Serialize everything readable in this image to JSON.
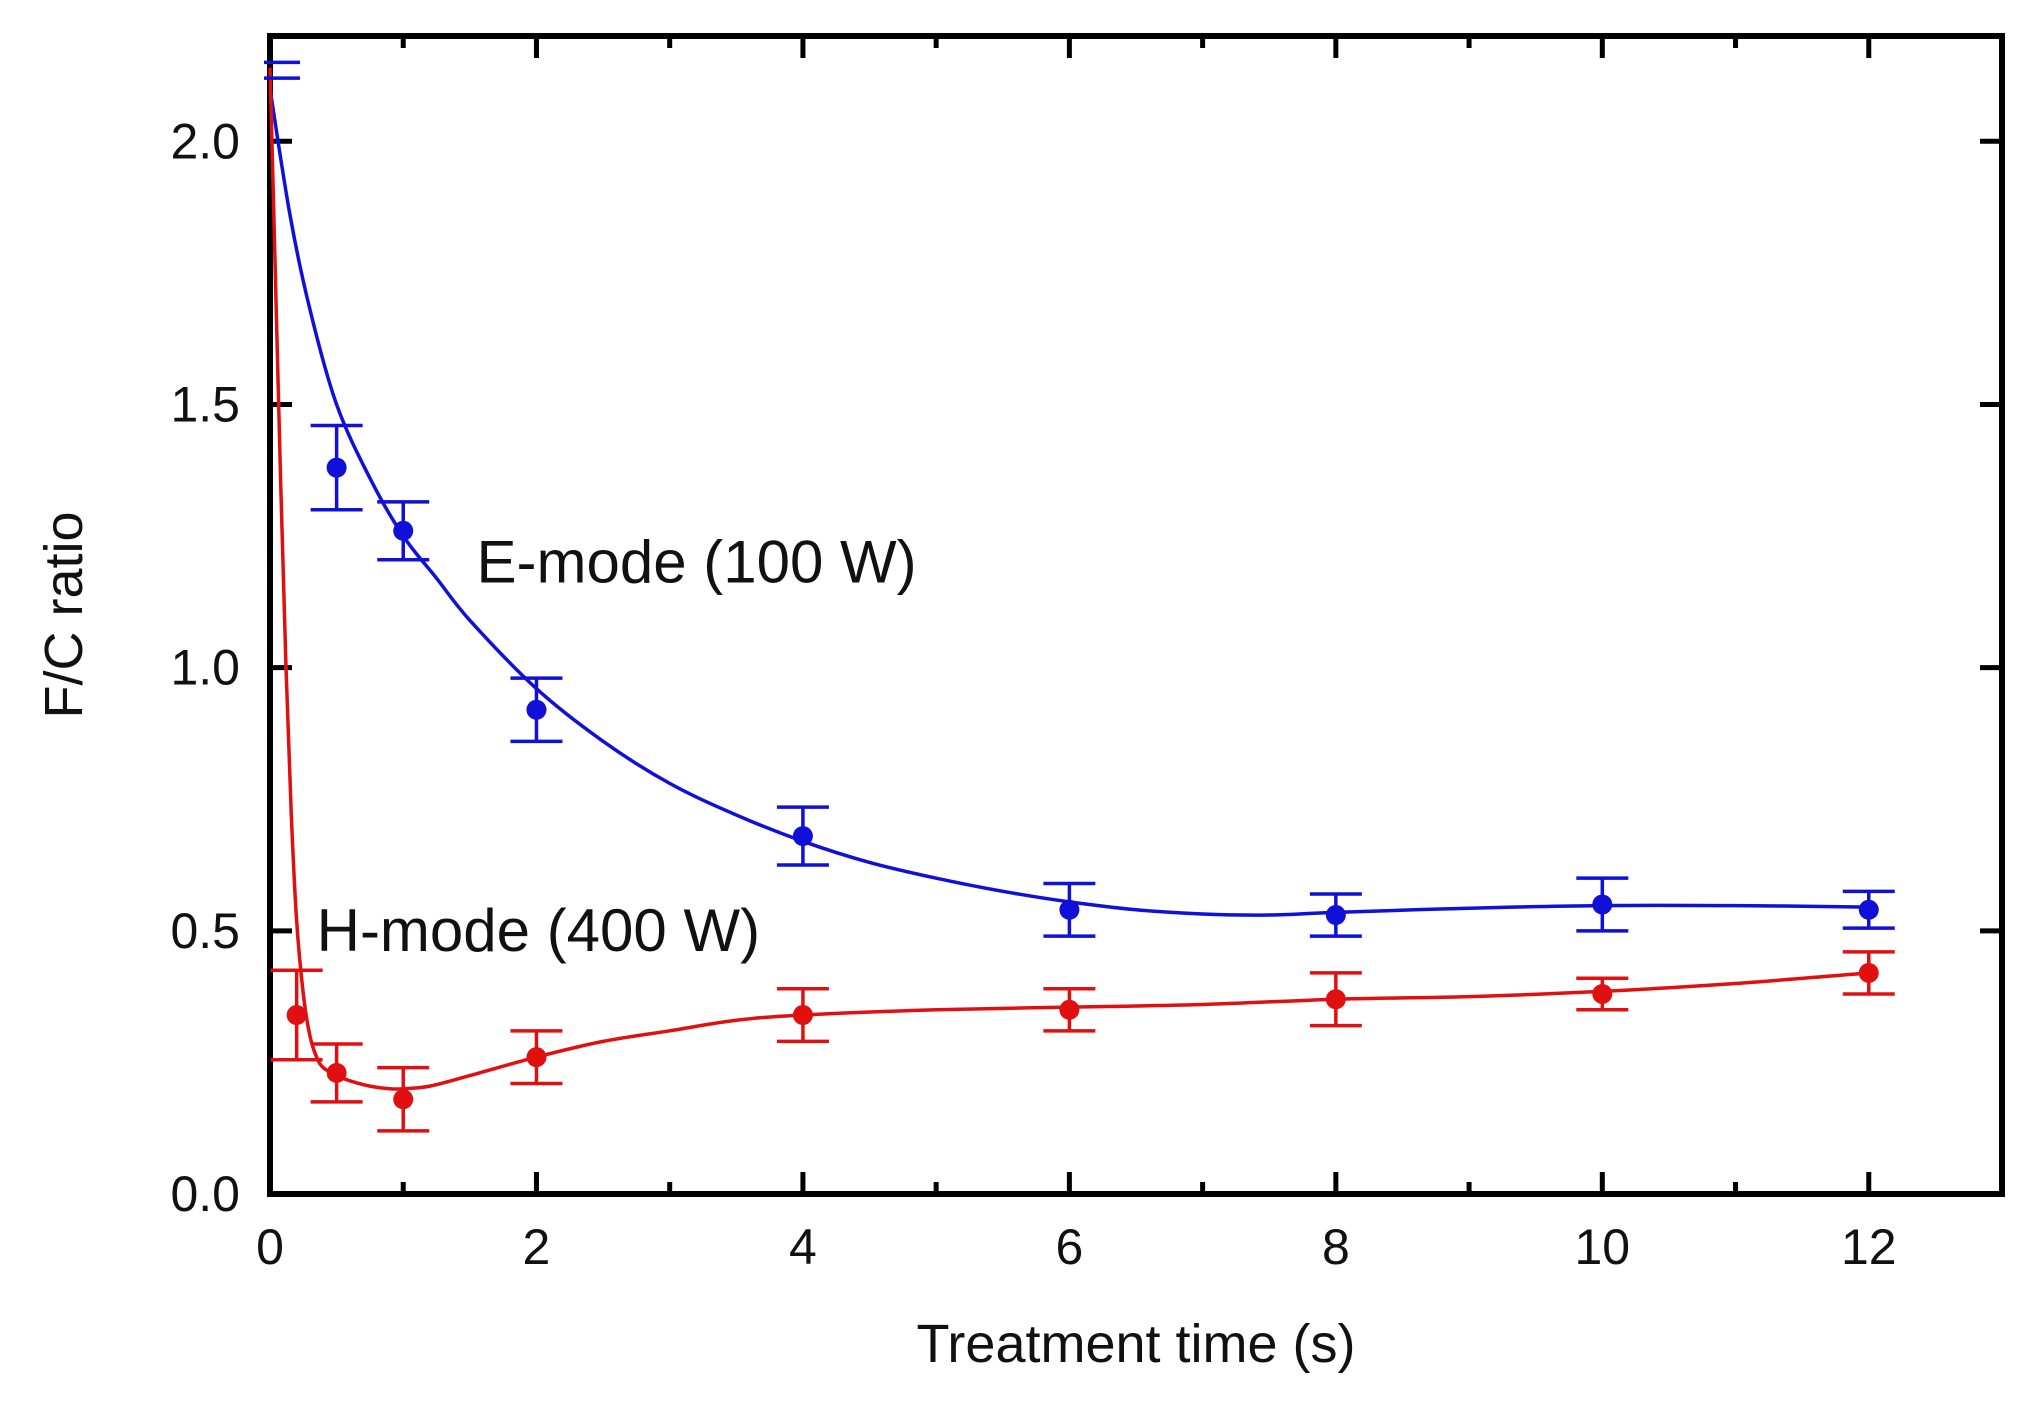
{
  "chart_data": {
    "type": "scatter",
    "title": "",
    "xlabel": "Treatment time (s)",
    "ylabel": "F/C ratio",
    "xlim": [
      0,
      13
    ],
    "ylim": [
      0,
      2.2
    ],
    "xticks": [
      0,
      2,
      4,
      6,
      8,
      10,
      12
    ],
    "xtick_labels": [
      "0",
      "2",
      "4",
      "6",
      "8",
      "10",
      "12"
    ],
    "yticks": [
      0.0,
      0.5,
      1.0,
      1.5,
      2.0
    ],
    "ytick_labels": [
      "0.0",
      "0.5",
      "1.0",
      "1.5",
      "2.0"
    ],
    "grid": false,
    "series": [
      {
        "name": "E-mode (100 W)",
        "color": "#1010d8",
        "x": [
          0.5,
          1,
          2,
          4,
          6,
          8,
          10,
          12
        ],
        "y": [
          1.38,
          1.26,
          0.92,
          0.68,
          0.54,
          0.53,
          0.55,
          0.54
        ],
        "yerr": [
          0.08,
          0.055,
          0.06,
          0.055,
          0.05,
          0.04,
          0.05,
          0.035
        ],
        "fit_x": [
          0,
          0.15,
          0.3,
          0.5,
          0.75,
          1,
          1.25,
          1.5,
          2,
          2.5,
          3,
          3.5,
          4,
          4.5,
          5,
          5.5,
          6,
          6.5,
          7,
          7.5,
          8,
          9,
          10,
          11,
          12
        ],
        "fit_y": [
          2.1,
          1.86,
          1.68,
          1.5,
          1.36,
          1.25,
          1.17,
          1.09,
          0.96,
          0.86,
          0.78,
          0.72,
          0.67,
          0.63,
          0.6,
          0.575,
          0.555,
          0.54,
          0.532,
          0.53,
          0.535,
          0.543,
          0.548,
          0.548,
          0.545
        ]
      },
      {
        "name": "H-mode (400 W)",
        "color": "#e01010",
        "x": [
          0.2,
          0.5,
          1,
          2,
          4,
          6,
          8,
          10,
          12
        ],
        "y": [
          0.34,
          0.23,
          0.18,
          0.26,
          0.34,
          0.35,
          0.37,
          0.38,
          0.42
        ],
        "yerr": [
          0.085,
          0.055,
          0.06,
          0.05,
          0.05,
          0.04,
          0.05,
          0.03,
          0.04
        ],
        "fit_x": [
          0,
          0.04,
          0.08,
          0.12,
          0.16,
          0.2,
          0.25,
          0.3,
          0.35,
          0.4,
          0.5,
          0.6,
          0.75,
          0.9,
          1,
          1.2,
          1.5,
          2,
          2.5,
          3,
          3.5,
          4,
          5,
          6,
          7,
          8,
          9,
          10,
          11,
          12
        ],
        "fit_y": [
          2.14,
          1.75,
          1.35,
          1.0,
          0.72,
          0.52,
          0.38,
          0.3,
          0.26,
          0.24,
          0.225,
          0.215,
          0.205,
          0.2,
          0.2,
          0.205,
          0.225,
          0.26,
          0.29,
          0.31,
          0.33,
          0.34,
          0.35,
          0.355,
          0.36,
          0.37,
          0.375,
          0.385,
          0.4,
          0.42
        ]
      }
    ],
    "annotations": [
      {
        "text": "E-mode (100 W)",
        "x": 1.55,
        "y": 1.2
      },
      {
        "text": "H-mode (400 W)",
        "x": 0.35,
        "y": 0.5
      }
    ]
  }
}
